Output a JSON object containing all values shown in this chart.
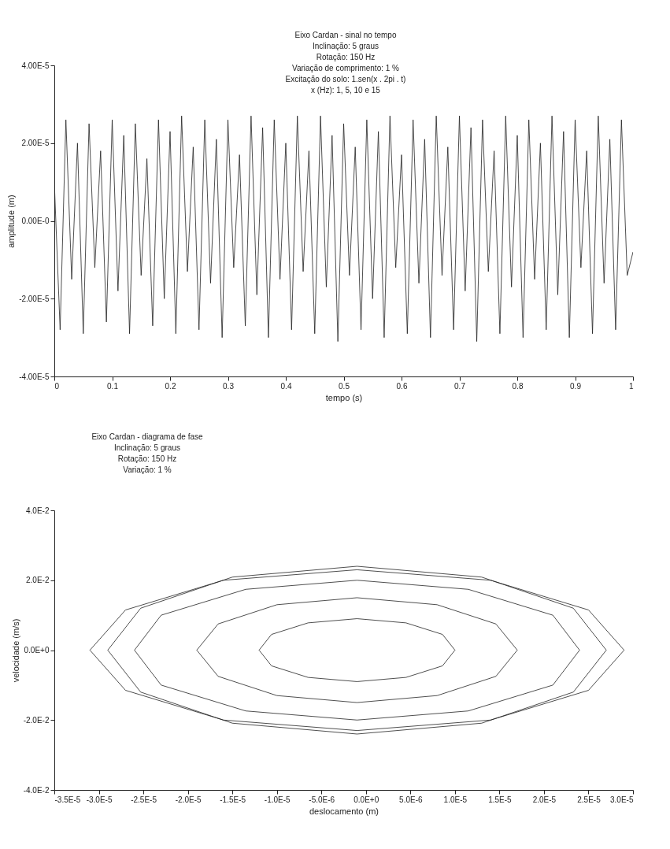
{
  "chart_data": [
    {
      "type": "line",
      "xlabel": "tempo (s)",
      "ylabel": "amplitude (m)",
      "grid": false,
      "line_style": "solid",
      "annotations": [
        "Eixo Cardan - sinal no tempo\nInclinação: 5 graus\nRotação: 150 Hz\nVariação de comprimento: 1 %\nExcitação do solo: 1.sen(x . 2pi . t)\nx (Hz): 1, 5, 10 e 15"
      ],
      "x": [
        0,
        0.01,
        0.02,
        0.03,
        0.04,
        0.05,
        0.06,
        0.07,
        0.08,
        0.09,
        0.1,
        0.11,
        0.12,
        0.13,
        0.14,
        0.15,
        0.16,
        0.17,
        0.18,
        0.19,
        0.2,
        0.21,
        0.22,
        0.23,
        0.24,
        0.25,
        0.26,
        0.27,
        0.28,
        0.29,
        0.3,
        0.31,
        0.32,
        0.33,
        0.34,
        0.35,
        0.36,
        0.37,
        0.38,
        0.39,
        0.4,
        0.41,
        0.42,
        0.43,
        0.44,
        0.45,
        0.46,
        0.47,
        0.48,
        0.49,
        0.5,
        0.51,
        0.52,
        0.53,
        0.54,
        0.55,
        0.56,
        0.57,
        0.58,
        0.59,
        0.6,
        0.61,
        0.62,
        0.63,
        0.64,
        0.65,
        0.66,
        0.67,
        0.68,
        0.69,
        0.7,
        0.71,
        0.72,
        0.73,
        0.74,
        0.75,
        0.76,
        0.77,
        0.78,
        0.79,
        0.8,
        0.81,
        0.82,
        0.83,
        0.84,
        0.85,
        0.86,
        0.87,
        0.88,
        0.89,
        0.9,
        0.91,
        0.92,
        0.93,
        0.94,
        0.95,
        0.96,
        0.97,
        0.98,
        0.99,
        1
      ],
      "series": [
        {
          "color": "#222222",
          "values": [
            1e-05,
            -2.8e-05,
            2.6e-05,
            -1.5e-05,
            2e-05,
            -2.9e-05,
            2.5e-05,
            -1.2e-05,
            1.8e-05,
            -2.6e-05,
            2.6e-05,
            -1.8e-05,
            2.2e-05,
            -2.9e-05,
            2.5e-05,
            -1.4e-05,
            1.6e-05,
            -2.7e-05,
            2.6e-05,
            -2e-05,
            2.3e-05,
            -2.9e-05,
            2.7e-05,
            -1.3e-05,
            1.9e-05,
            -2.8e-05,
            2.6e-05,
            -1.6e-05,
            2.1e-05,
            -3e-05,
            2.6e-05,
            -1.2e-05,
            1.7e-05,
            -2.7e-05,
            2.7e-05,
            -1.9e-05,
            2.4e-05,
            -3e-05,
            2.6e-05,
            -1.5e-05,
            2e-05,
            -2.8e-05,
            2.7e-05,
            -1.3e-05,
            1.8e-05,
            -2.9e-05,
            2.7e-05,
            -1.7e-05,
            2.2e-05,
            -3.1e-05,
            2.5e-05,
            -1.4e-05,
            1.9e-05,
            -2.8e-05,
            2.6e-05,
            -2e-05,
            2.3e-05,
            -3e-05,
            2.7e-05,
            -1.2e-05,
            1.7e-05,
            -2.9e-05,
            2.6e-05,
            -1.6e-05,
            2.1e-05,
            -3e-05,
            2.7e-05,
            -1.4e-05,
            1.9e-05,
            -2.8e-05,
            2.7e-05,
            -1.8e-05,
            2.4e-05,
            -3.1e-05,
            2.6e-05,
            -1.3e-05,
            1.8e-05,
            -2.9e-05,
            2.7e-05,
            -1.7e-05,
            2.2e-05,
            -3e-05,
            2.6e-05,
            -1.5e-05,
            2e-05,
            -2.8e-05,
            2.7e-05,
            -1.9e-05,
            2.3e-05,
            -3e-05,
            2.6e-05,
            -1.2e-05,
            1.8e-05,
            -2.9e-05,
            2.7e-05,
            -1.6e-05,
            2.1e-05,
            -2.8e-05,
            2.6e-05,
            -1.4e-05,
            -8e-06
          ]
        }
      ],
      "xlim": [
        0,
        1
      ],
      "xticks": [
        0,
        0.1,
        0.2,
        0.3,
        0.4,
        0.5,
        0.6,
        0.7,
        0.8,
        0.9,
        1
      ],
      "ylim": [
        -4e-05,
        4e-05
      ],
      "yticks": [
        {
          "value": -4e-05,
          "label": "-4.00E-5"
        },
        {
          "value": -2e-05,
          "label": "-2.00E-5"
        },
        {
          "value": 0,
          "label": "0.00E-0"
        },
        {
          "value": 2e-05,
          "label": "2.00E-5"
        },
        {
          "value": 4e-05,
          "label": "4.00E-5"
        }
      ]
    },
    {
      "type": "line",
      "xlabel": "deslocamento (m)",
      "ylabel": "velocidade (m/s)",
      "grid": false,
      "line_style": "solid",
      "annotations": [
        "Eixo Cardan - diagrama de fase\nInclinação: 5 graus\nRotação: 150 Hz\nVariação: 1 %"
      ],
      "series": [
        {
          "color": "#222222",
          "x": [
            -3.1e-05,
            -2.7e-05,
            -1.6e-05,
            -1e-06,
            1.4e-05,
            2.5e-05,
            2.9e-05
          ],
          "values": [
            0,
            0.0115,
            0.02,
            0.023,
            0.02,
            0.0115,
            0
          ]
        },
        {
          "color": "#222222",
          "x": [
            -3.1e-05,
            -2.7e-05,
            -1.6e-05,
            -1e-06,
            1.4e-05,
            2.5e-05,
            2.9e-05
          ],
          "values": [
            0,
            -0.0115,
            -0.02,
            -0.023,
            -0.02,
            -0.0115,
            0
          ]
        },
        {
          "color": "#222222",
          "x": [
            -2.6e-05,
            -2.3e-05,
            -1.35e-05,
            -1e-06,
            1.15e-05,
            2.1e-05,
            2.4e-05
          ],
          "values": [
            0,
            0.01,
            0.0174,
            0.02,
            0.0174,
            0.01,
            0
          ]
        },
        {
          "color": "#222222",
          "x": [
            -2.6e-05,
            -2.3e-05,
            -1.35e-05,
            -1e-06,
            1.15e-05,
            2.1e-05,
            2.4e-05
          ],
          "values": [
            0,
            -0.01,
            -0.0174,
            -0.02,
            -0.0174,
            -0.01,
            0
          ]
        },
        {
          "color": "#222222",
          "x": [
            -1.9e-05,
            -1.66e-05,
            -1e-05,
            -1e-06,
            8e-06,
            1.46e-05,
            1.7e-05
          ],
          "values": [
            0,
            0.0075,
            0.013,
            0.015,
            0.013,
            0.0075,
            0
          ]
        },
        {
          "color": "#222222",
          "x": [
            -1.9e-05,
            -1.66e-05,
            -1e-05,
            -1e-06,
            8e-06,
            1.46e-05,
            1.7e-05
          ],
          "values": [
            0,
            -0.0075,
            -0.013,
            -0.015,
            -0.013,
            -0.0075,
            0
          ]
        },
        {
          "color": "#222222",
          "x": [
            -1.2e-05,
            -1.06e-05,
            -6.5e-06,
            -1e-06,
            4.5e-06,
            8.6e-06,
            1e-05
          ],
          "values": [
            0,
            0.0045,
            0.0078,
            0.009,
            0.0078,
            0.0045,
            0
          ]
        },
        {
          "color": "#222222",
          "x": [
            -1.2e-05,
            -1.06e-05,
            -6.5e-06,
            -1e-06,
            4.5e-06,
            8.6e-06,
            1e-05
          ],
          "values": [
            0,
            -0.0045,
            -0.0078,
            -0.009,
            -0.0078,
            -0.0045,
            0
          ]
        },
        {
          "color": "#222222",
          "x": [
            -2.9e-05,
            -2.53e-05,
            -1.5e-05,
            -1e-06,
            1.3e-05,
            2.33e-05,
            2.7e-05
          ],
          "values": [
            0,
            0.012,
            0.0209,
            0.024,
            0.0209,
            0.012,
            0
          ]
        },
        {
          "color": "#222222",
          "x": [
            -2.9e-05,
            -2.53e-05,
            -1.5e-05,
            -1e-06,
            1.3e-05,
            2.33e-05,
            2.7e-05
          ],
          "values": [
            0,
            -0.012,
            -0.0209,
            -0.024,
            -0.0209,
            -0.012,
            0
          ]
        }
      ],
      "xlim": [
        -3.5e-05,
        3e-05
      ],
      "xticks": [
        {
          "value": -3.5e-05,
          "label": "-3.5E-5"
        },
        {
          "value": -3e-05,
          "label": "-3.0E-5"
        },
        {
          "value": -2.5e-05,
          "label": "-2.5E-5"
        },
        {
          "value": -2e-05,
          "label": "-2.0E-5"
        },
        {
          "value": -1.5e-05,
          "label": "-1.5E-5"
        },
        {
          "value": -1e-05,
          "label": "-1.0E-5"
        },
        {
          "value": -5e-06,
          "label": "-5.0E-6"
        },
        {
          "value": 0,
          "label": "0.0E+0"
        },
        {
          "value": 5e-06,
          "label": "5.0E-6"
        },
        {
          "value": 1e-05,
          "label": "1.0E-5"
        },
        {
          "value": 1.5e-05,
          "label": "1.5E-5"
        },
        {
          "value": 2e-05,
          "label": "2.0E-5"
        },
        {
          "value": 2.5e-05,
          "label": "2.5E-5"
        },
        {
          "value": 3e-05,
          "label": "3.0E-5"
        }
      ],
      "ylim": [
        -0.04,
        0.04
      ],
      "yticks": [
        {
          "value": -0.04,
          "label": "-4.0E-2"
        },
        {
          "value": -0.02,
          "label": "-2.0E-2"
        },
        {
          "value": 0,
          "label": "0.0E+0"
        },
        {
          "value": 0.02,
          "label": "2.0E-2"
        },
        {
          "value": 0.04,
          "label": "4.0E-2"
        }
      ]
    }
  ]
}
